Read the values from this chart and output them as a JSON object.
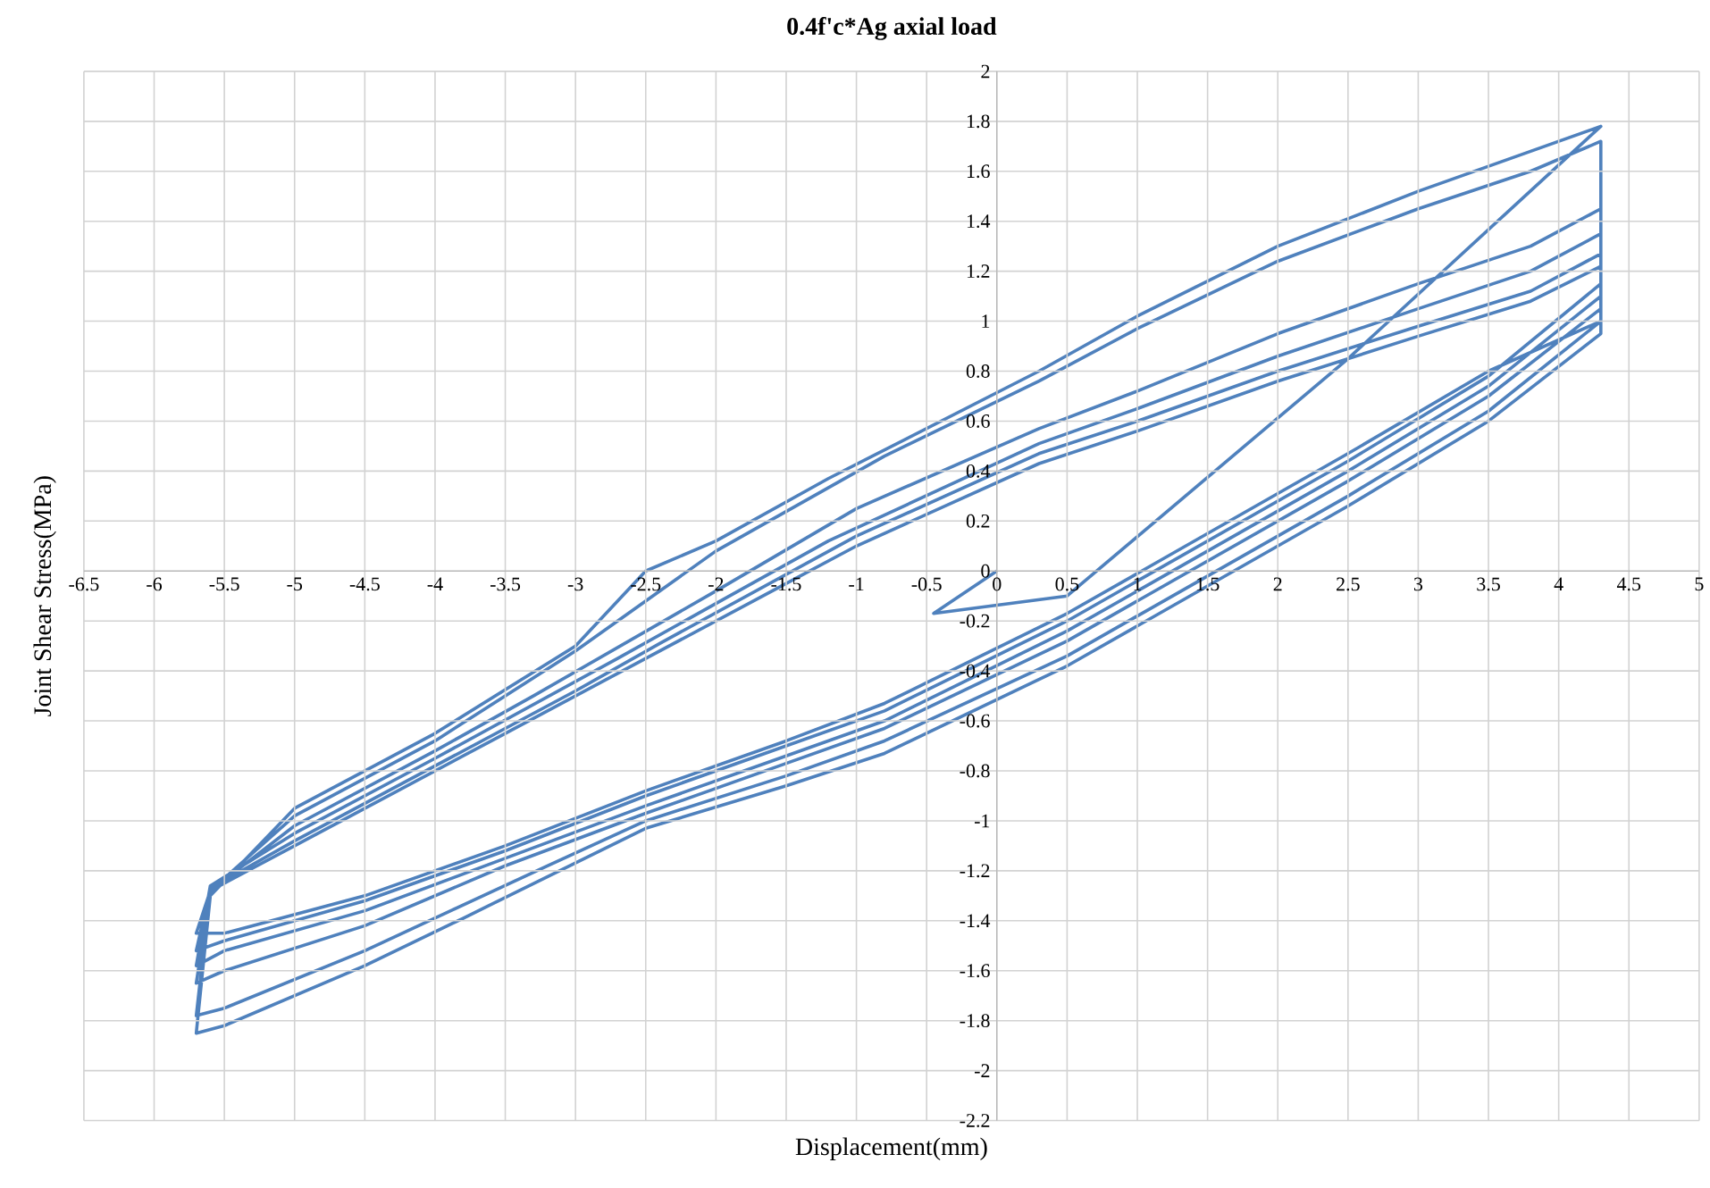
{
  "chart_data": {
    "type": "line",
    "title": "0.4f'c*Ag axial load",
    "xlabel": "Displacement(mm)",
    "ylabel": "Joint  Shear  Stress(MPa)",
    "xlim": [
      -6.5,
      5
    ],
    "ylim": [
      -2.2,
      2
    ],
    "xticks": [
      -6.5,
      -6,
      -5.5,
      -5,
      -4.5,
      -4,
      -3.5,
      -3,
      -2.5,
      -2,
      -1.5,
      -1,
      -0.5,
      0,
      0.5,
      1,
      1.5,
      2,
      2.5,
      3,
      3.5,
      4,
      4.5,
      5
    ],
    "yticks": [
      -2.2,
      -2,
      -1.8,
      -1.6,
      -1.4,
      -1.2,
      -1,
      -0.8,
      -0.6,
      -0.4,
      -0.2,
      0,
      0.2,
      0.4,
      0.6,
      0.8,
      1,
      1.2,
      1.4,
      1.6,
      1.8,
      2
    ],
    "grid": true,
    "marker": "none",
    "line_style": "solid",
    "series": [
      {
        "color": "#4f81bd",
        "x": [
          0,
          -0.45,
          0.5,
          2.5,
          4.3,
          3.8,
          3,
          2,
          1,
          0.3,
          -1.2,
          -2,
          -2.5,
          -3,
          -4,
          -5,
          -5.6,
          -5.7,
          -5.5,
          -4.5,
          -3.8,
          -2.5,
          -1.5,
          -0.8,
          0.5,
          1.5,
          2.5,
          3.5,
          4.3,
          4.3,
          3.8,
          3,
          2,
          1,
          0.3,
          -0.8,
          -2,
          -3,
          -4,
          -5,
          -5.6,
          -5.7,
          -5.5,
          -4.5,
          -3.2,
          -2.5,
          -1.5,
          -0.8,
          0.5,
          1.5,
          2.5,
          3.5,
          4.3,
          4.3,
          3.8,
          3,
          2,
          1,
          0.3,
          -1,
          -2,
          -3.3,
          -4,
          -5,
          -5.6,
          -5.7,
          -5.5,
          -4.5,
          -3.5,
          -2.5,
          -1.5,
          -0.8,
          0.5,
          1.5,
          2.5,
          3.5,
          4.3,
          4.3,
          3.8,
          3,
          2,
          1,
          0.3,
          -1.2,
          -2,
          -2.7,
          -4,
          -5,
          -5.6,
          -5.7,
          -5.5,
          -4.5,
          -3.5,
          -2.5,
          -1.5,
          -0.8,
          0.5,
          1.5,
          2.5,
          3.5,
          4.3,
          4.3,
          3.8,
          3,
          2,
          1,
          0.3,
          -1,
          -2.4,
          -3,
          -4.3,
          -5,
          -5.6,
          -5.7,
          -5.5,
          -4.5,
          -3.5,
          -2.5,
          -1.5,
          -0.8,
          0.5,
          1.5,
          2.5,
          3.5,
          4.3,
          4.3,
          3.8,
          3,
          2,
          1,
          0.3,
          -1,
          -1.6,
          -3.5,
          -4.6,
          -5,
          -5.6,
          -5.7,
          -5.5,
          -4.5,
          -3.5,
          -2.5,
          -1.5,
          -0.8,
          0.5,
          1.5,
          2.5,
          3.5,
          4.3
        ],
        "values": [
          0,
          -0.17,
          -0.1,
          0.85,
          1.78,
          1.68,
          1.52,
          1.3,
          1.02,
          0.8,
          0.37,
          0.12,
          0.0,
          -0.3,
          -0.65,
          -0.95,
          -1.3,
          -1.85,
          -1.82,
          -1.58,
          -1.39,
          -1.03,
          -0.86,
          -0.73,
          -0.38,
          -0.06,
          0.26,
          0.6,
          0.95,
          1.72,
          1.6,
          1.45,
          1.24,
          0.97,
          0.76,
          0.46,
          0.08,
          -0.32,
          -0.68,
          -0.98,
          -1.28,
          -1.78,
          -1.75,
          -1.52,
          -1.18,
          -1.0,
          -0.82,
          -0.68,
          -0.34,
          -0.02,
          0.3,
          0.64,
          1.0,
          1.45,
          1.3,
          1.15,
          0.95,
          0.72,
          0.57,
          0.25,
          -0.08,
          -0.5,
          -0.72,
          -1.02,
          -1.28,
          -1.65,
          -1.6,
          -1.42,
          -1.18,
          -0.97,
          -0.77,
          -0.63,
          -0.28,
          0.04,
          0.36,
          0.7,
          1.05,
          1.35,
          1.2,
          1.05,
          0.86,
          0.65,
          0.51,
          0.12,
          -0.13,
          -0.35,
          -0.75,
          -1.05,
          -1.26,
          -1.58,
          -1.52,
          -1.36,
          -1.15,
          -0.94,
          -0.74,
          -0.6,
          -0.24,
          0.08,
          0.4,
          0.74,
          1.1,
          1.27,
          1.12,
          0.98,
          0.8,
          0.6,
          0.47,
          0.14,
          -0.29,
          -0.48,
          -0.87,
          -1.08,
          -1.27,
          -1.52,
          -1.48,
          -1.32,
          -1.12,
          -0.9,
          -0.7,
          -0.56,
          -0.2,
          0.12,
          0.44,
          0.78,
          1.15,
          1.22,
          1.08,
          0.94,
          0.76,
          0.56,
          0.43,
          0.1,
          -0.08,
          -0.65,
          -0.98,
          -1.1,
          -1.28,
          -1.45,
          -1.45,
          -1.3,
          -1.1,
          -0.88,
          -0.68,
          -0.53,
          -0.17,
          0.15,
          0.47,
          0.8,
          1.0
        ]
      }
    ]
  }
}
